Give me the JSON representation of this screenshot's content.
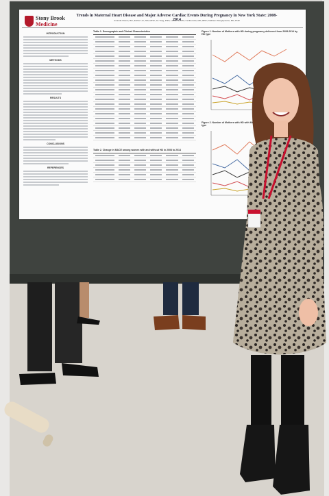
{
  "poster": {
    "logo_line1": "Stony Brook",
    "logo_line2": "Medicine",
    "title": "Trends in Maternal Heart Disease and Major Adverse Cardiac Events During Pregnancy in New York State: 2008-2014",
    "authors": "Amanda Owens, BA¹; Esther Lin², MD, MPH²; Jie Yang, PhD²; Lizhen Ni, MS³; Cecilia Avila, MD, MPH³; Kathleen Stergiopoulos, MD, PhD³",
    "sections": {
      "intro": "INTRODUCTION",
      "methods": "METHODS",
      "results": "RESULTS",
      "conclusions": "CONCLUSIONS",
      "references": "REFERENCES"
    },
    "table1_caption": "Table 1. Demographic and Clinical Characteristics",
    "table2_caption": "Table 2. Change in MACE among women with and without HD in 2008 to 2014",
    "figure1_caption": "Figure 1. Number of Mothers with HD during pregnancy delivered from 2008-2014 by HD type",
    "figure2_caption": "Figure 2. Number of Mothers with HD with MACE during pregnancy 2008-2014 by HD type"
  }
}
